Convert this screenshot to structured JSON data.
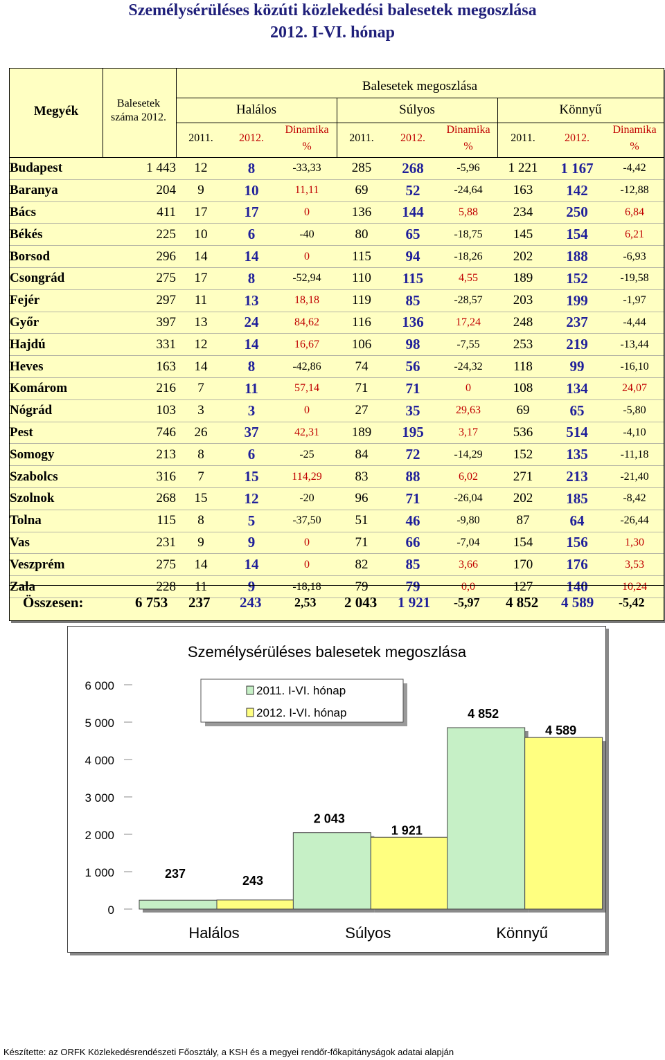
{
  "title": {
    "line1": "Személysérüléses közúti közlekedési balesetek megoszlása",
    "line2": "2012. I-VI. hónap"
  },
  "table": {
    "headers": {
      "megyek": "Megyék",
      "balesetek": "Balesetek",
      "balesetek2": "száma 2012.",
      "group": "Balesetek megoszlása",
      "halalos": "Halálos",
      "sulyos": "Súlyos",
      "konnyu": "Könnyű",
      "y2011": "2011.",
      "y2012": "2012.",
      "dinamika": "Dinamika",
      "pct": "%"
    },
    "rows": [
      [
        "Budapest",
        "1 443",
        "12",
        "8",
        "-33,33",
        "285",
        "268",
        "-5,96",
        "1 221",
        "1 167",
        "-4,42"
      ],
      [
        "Baranya",
        "204",
        "9",
        "10",
        "11,11",
        "69",
        "52",
        "-24,64",
        "163",
        "142",
        "-12,88"
      ],
      [
        "Bács",
        "411",
        "17",
        "17",
        "0",
        "136",
        "144",
        "5,88",
        "234",
        "250",
        "6,84"
      ],
      [
        "Békés",
        "225",
        "10",
        "6",
        "-40",
        "80",
        "65",
        "-18,75",
        "145",
        "154",
        "6,21"
      ],
      [
        "Borsod",
        "296",
        "14",
        "14",
        "0",
        "115",
        "94",
        "-18,26",
        "202",
        "188",
        "-6,93"
      ],
      [
        "Csongrád",
        "275",
        "17",
        "8",
        "-52,94",
        "110",
        "115",
        "4,55",
        "189",
        "152",
        "-19,58"
      ],
      [
        "Fejér",
        "297",
        "11",
        "13",
        "18,18",
        "119",
        "85",
        "-28,57",
        "203",
        "199",
        "-1,97"
      ],
      [
        "Győr",
        "397",
        "13",
        "24",
        "84,62",
        "116",
        "136",
        "17,24",
        "248",
        "237",
        "-4,44"
      ],
      [
        "Hajdú",
        "331",
        "12",
        "14",
        "16,67",
        "106",
        "98",
        "-7,55",
        "253",
        "219",
        "-13,44"
      ],
      [
        "Heves",
        "163",
        "14",
        "8",
        "-42,86",
        "74",
        "56",
        "-24,32",
        "118",
        "99",
        "-16,10"
      ],
      [
        "Komárom",
        "216",
        "7",
        "11",
        "57,14",
        "71",
        "71",
        "0",
        "108",
        "134",
        "24,07"
      ],
      [
        "Nógrád",
        "103",
        "3",
        "3",
        "0",
        "27",
        "35",
        "29,63",
        "69",
        "65",
        "-5,80"
      ],
      [
        "Pest",
        "746",
        "26",
        "37",
        "42,31",
        "189",
        "195",
        "3,17",
        "536",
        "514",
        "-4,10"
      ],
      [
        "Somogy",
        "213",
        "8",
        "6",
        "-25",
        "84",
        "72",
        "-14,29",
        "152",
        "135",
        "-11,18"
      ],
      [
        "Szabolcs",
        "316",
        "7",
        "15",
        "114,29",
        "83",
        "88",
        "6,02",
        "271",
        "213",
        "-21,40"
      ],
      [
        "Szolnok",
        "268",
        "15",
        "12",
        "-20",
        "96",
        "71",
        "-26,04",
        "202",
        "185",
        "-8,42"
      ],
      [
        "Tolna",
        "115",
        "8",
        "5",
        "-37,50",
        "51",
        "46",
        "-9,80",
        "87",
        "64",
        "-26,44"
      ],
      [
        "Vas",
        "231",
        "9",
        "9",
        "0",
        "71",
        "66",
        "-7,04",
        "154",
        "156",
        "1,30"
      ],
      [
        "Veszprém",
        "275",
        "14",
        "14",
        "0",
        "82",
        "85",
        "3,66",
        "170",
        "176",
        "3,53"
      ],
      [
        "Zala",
        "228",
        "11",
        "9",
        "-18,18",
        "79",
        "79",
        "0,0",
        "127",
        "140",
        "10,24"
      ]
    ],
    "red_dyn": [
      [
        false,
        false,
        false
      ],
      [
        true,
        false,
        false
      ],
      [
        true,
        true,
        true
      ],
      [
        false,
        false,
        true
      ],
      [
        true,
        false,
        false
      ],
      [
        false,
        true,
        false
      ],
      [
        true,
        false,
        false
      ],
      [
        true,
        true,
        false
      ],
      [
        true,
        false,
        false
      ],
      [
        false,
        false,
        false
      ],
      [
        true,
        true,
        true
      ],
      [
        true,
        true,
        false
      ],
      [
        true,
        true,
        false
      ],
      [
        false,
        false,
        false
      ],
      [
        true,
        true,
        false
      ],
      [
        false,
        false,
        false
      ],
      [
        false,
        false,
        false
      ],
      [
        true,
        false,
        true
      ],
      [
        true,
        true,
        true
      ],
      [
        false,
        true,
        true
      ]
    ],
    "totals": {
      "label": "Összesen:",
      "values": [
        "6 753",
        "237",
        "243",
        "2,53",
        "2 043",
        "1 921",
        "-5,97",
        "4 852",
        "4 589",
        "-5,42"
      ]
    }
  },
  "chart_data": {
    "type": "bar",
    "title": "Személysérüléses balesetek megoszlása",
    "categories": [
      "Halálos",
      "Súlyos",
      "Könnyű"
    ],
    "series": [
      {
        "name": "2011. I-VI. hónap",
        "values": [
          237,
          2043,
          4852
        ],
        "color": "#c6f0c6"
      },
      {
        "name": "2012. I-VI. hónap",
        "values": [
          243,
          1921,
          4589
        ],
        "color": "#ffff80"
      }
    ],
    "value_labels": [
      [
        "237",
        "2 043",
        "4 852"
      ],
      [
        "243",
        "1 921",
        "4 589"
      ]
    ],
    "yticks": [
      "0",
      "1 000",
      "2 000",
      "3 000",
      "4 000",
      "5 000",
      "6 000"
    ],
    "ylim": [
      0,
      6000
    ],
    "legend": "top-left"
  },
  "footer": "Készítette: az ORFK Közlekedésrendészeti Főosztály, a KSH és a megyei rendőr-főkapitányságok adatai alapján"
}
